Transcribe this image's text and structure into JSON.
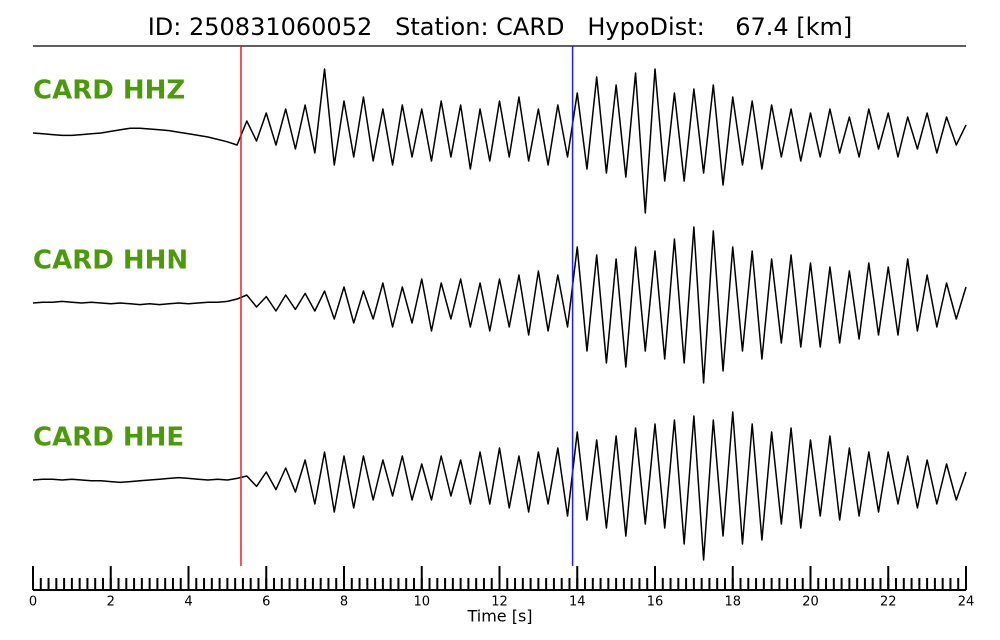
{
  "chart_data": {
    "type": "waveform",
    "title": "ID: 250831060052   Station: CARD   HypoDist:    67.4 [km]",
    "x_label": "Time [s]",
    "xlim": [
      0,
      24
    ],
    "xticks": [
      0,
      2,
      4,
      6,
      8,
      10,
      12,
      14,
      16,
      18,
      20,
      22,
      24
    ],
    "xminor": 0.2,
    "label_color": "#4a9a0a",
    "picks": [
      {
        "value": 5.35,
        "color": "#e8202a"
      },
      {
        "value": 13.88,
        "color": "#2020e0"
      }
    ],
    "x": [
      0,
      0.25,
      0.5,
      0.75,
      1,
      1.25,
      1.5,
      1.75,
      2,
      2.25,
      2.5,
      2.75,
      3,
      3.25,
      3.5,
      3.75,
      4,
      4.25,
      4.5,
      4.75,
      5,
      5.25,
      5.5,
      5.75,
      6,
      6.25,
      6.5,
      6.75,
      7,
      7.25,
      7.5,
      7.75,
      8,
      8.25,
      8.5,
      8.75,
      9,
      9.25,
      9.5,
      9.75,
      10,
      10.25,
      10.5,
      10.75,
      11,
      11.25,
      11.5,
      11.75,
      12,
      12.25,
      12.5,
      12.75,
      13,
      13.25,
      13.5,
      13.75,
      14,
      14.25,
      14.5,
      14.75,
      15,
      15.25,
      15.5,
      15.75,
      16,
      16.25,
      16.5,
      16.75,
      17,
      17.25,
      17.5,
      17.75,
      18,
      18.25,
      18.5,
      18.75,
      19,
      19.25,
      19.5,
      19.75,
      20,
      20.25,
      20.5,
      20.75,
      21,
      21.25,
      21.5,
      21.75,
      22,
      22.25,
      22.5,
      22.75,
      23,
      23.25,
      23.5,
      23.75,
      24
    ],
    "series": [
      {
        "name": "CARD HHZ",
        "color": "#000000",
        "values": [
          0,
          -0.01,
          -0.02,
          -0.03,
          -0.03,
          -0.02,
          -0.01,
          0,
          0.02,
          0.04,
          0.06,
          0.06,
          0.05,
          0.04,
          0.03,
          0.01,
          -0.01,
          -0.03,
          -0.05,
          -0.08,
          -0.11,
          -0.15,
          0.15,
          -0.1,
          0.25,
          -0.15,
          0.3,
          -0.2,
          0.35,
          -0.25,
          0.8,
          -0.4,
          0.4,
          -0.3,
          0.45,
          -0.35,
          0.3,
          -0.4,
          0.35,
          -0.3,
          0.3,
          -0.35,
          0.4,
          -0.3,
          0.35,
          -0.45,
          0.3,
          -0.35,
          0.4,
          -0.3,
          0.45,
          -0.35,
          0.3,
          -0.4,
          0.35,
          -0.3,
          0.5,
          -0.45,
          0.7,
          -0.5,
          0.6,
          -0.55,
          0.75,
          -1.0,
          0.8,
          -0.6,
          0.5,
          -0.6,
          0.55,
          -0.5,
          0.6,
          -0.65,
          0.45,
          -0.4,
          0.4,
          -0.45,
          0.35,
          -0.3,
          0.3,
          -0.35,
          0.25,
          -0.3,
          0.3,
          -0.25,
          0.2,
          -0.3,
          0.3,
          -0.2,
          0.25,
          -0.3,
          0.2,
          -0.2,
          0.25,
          -0.25,
          0.2,
          -0.15,
          0.1
        ]
      },
      {
        "name": "CARD HHN",
        "color": "#000000",
        "values": [
          0,
          0.01,
          0.01,
          0.02,
          0.01,
          0,
          0.01,
          0,
          -0.01,
          0,
          -0.01,
          -0.02,
          -0.01,
          -0.02,
          -0.01,
          0,
          -0.01,
          0,
          0.01,
          0.01,
          0.02,
          0.05,
          0.1,
          -0.05,
          0.08,
          -0.1,
          0.1,
          -0.08,
          0.12,
          -0.1,
          0.15,
          -0.2,
          0.2,
          -0.25,
          0.15,
          -0.2,
          0.25,
          -0.3,
          0.2,
          -0.25,
          0.3,
          -0.35,
          0.25,
          -0.2,
          0.3,
          -0.3,
          0.25,
          -0.35,
          0.3,
          -0.3,
          0.35,
          -0.4,
          0.4,
          -0.35,
          0.35,
          -0.3,
          0.7,
          -0.6,
          0.6,
          -0.75,
          0.55,
          -0.8,
          0.7,
          -0.6,
          0.65,
          -0.7,
          0.8,
          -0.75,
          0.95,
          -1.0,
          0.9,
          -0.85,
          0.7,
          -0.6,
          0.65,
          -0.7,
          0.55,
          -0.5,
          0.6,
          -0.55,
          0.5,
          -0.55,
          0.45,
          -0.5,
          0.4,
          -0.45,
          0.5,
          -0.4,
          0.45,
          -0.4,
          0.55,
          -0.35,
          0.35,
          -0.3,
          0.25,
          -0.2,
          0.2
        ]
      },
      {
        "name": "CARD HHE",
        "color": "#000000",
        "values": [
          0,
          0.01,
          0.01,
          0,
          0.01,
          0,
          -0.01,
          -0.01,
          -0.02,
          -0.03,
          -0.02,
          -0.01,
          0,
          0.01,
          0.02,
          0.03,
          0.02,
          0.01,
          0,
          0.01,
          0,
          0.02,
          0.05,
          -0.08,
          0.1,
          -0.12,
          0.15,
          -0.15,
          0.25,
          -0.3,
          0.35,
          -0.4,
          0.3,
          -0.35,
          0.3,
          -0.25,
          0.25,
          -0.2,
          0.3,
          -0.25,
          0.2,
          -0.25,
          0.3,
          -0.2,
          0.25,
          -0.3,
          0.35,
          -0.3,
          0.4,
          -0.35,
          0.3,
          -0.4,
          0.35,
          -0.3,
          0.4,
          -0.45,
          0.6,
          -0.5,
          0.5,
          -0.6,
          0.55,
          -0.7,
          0.65,
          -0.55,
          0.7,
          -0.6,
          0.75,
          -0.8,
          0.8,
          -1.0,
          0.75,
          -0.7,
          0.85,
          -0.8,
          0.7,
          -0.75,
          0.6,
          -0.55,
          0.65,
          -0.6,
          0.5,
          -0.45,
          0.55,
          -0.5,
          0.4,
          -0.45,
          0.35,
          -0.4,
          0.35,
          -0.3,
          0.3,
          -0.35,
          0.25,
          -0.3,
          0.2,
          -0.25,
          0.1
        ]
      }
    ]
  }
}
